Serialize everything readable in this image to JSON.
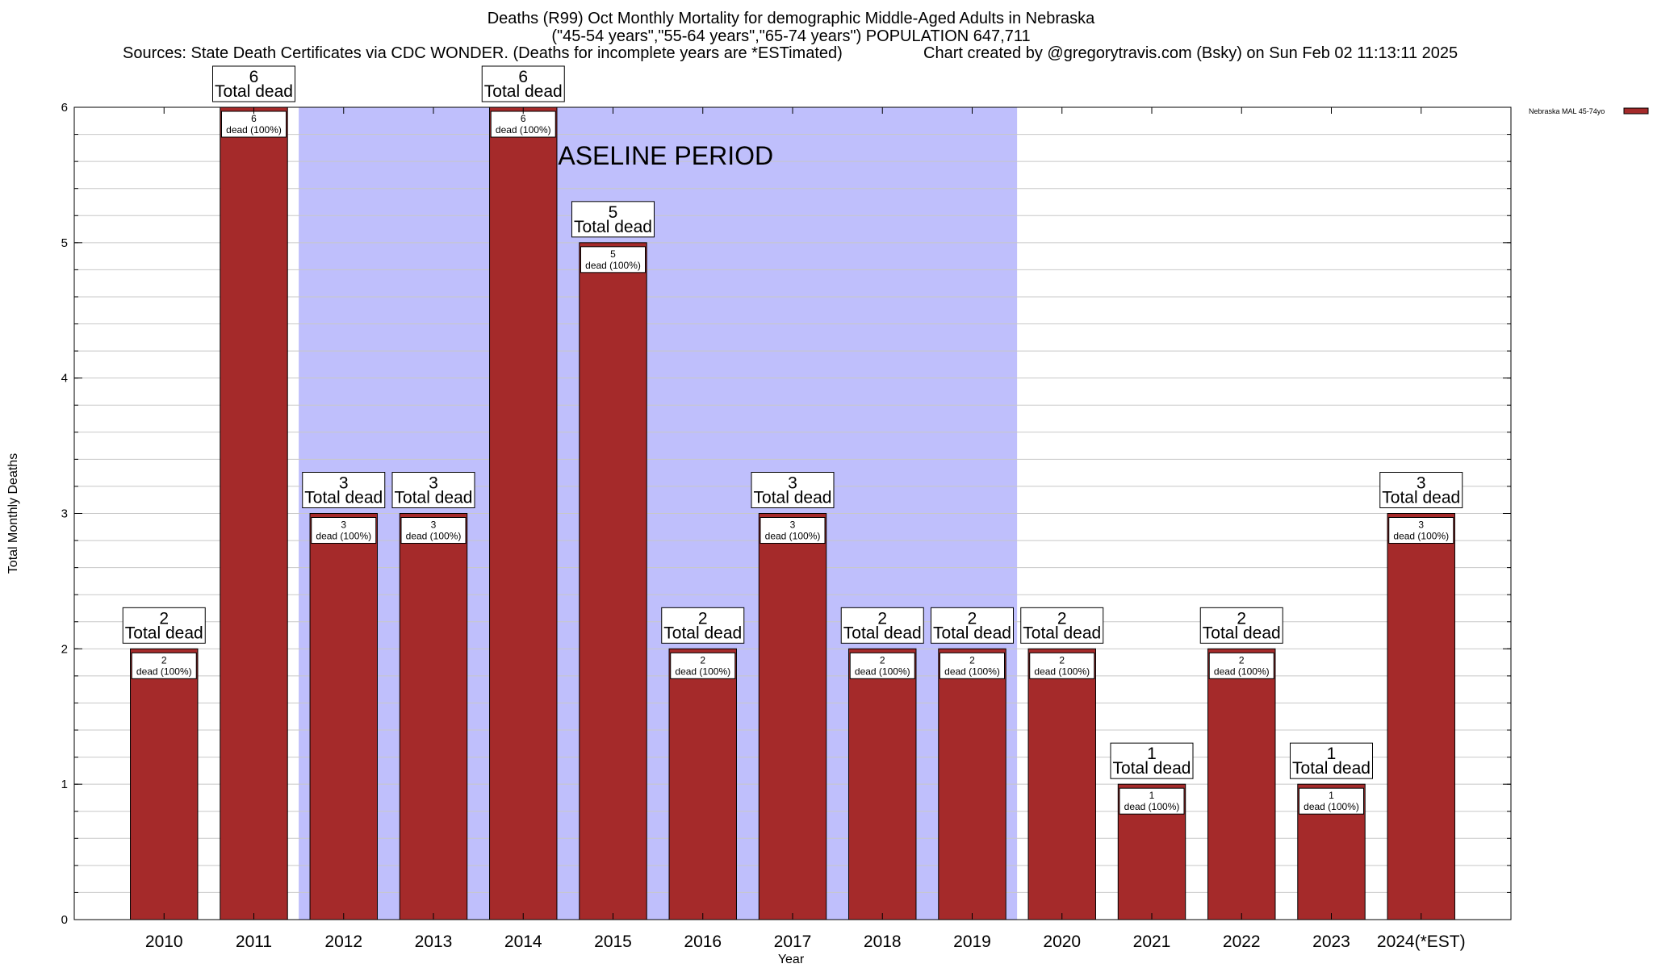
{
  "title": {
    "line1": "Deaths (R99) Oct Monthly Mortality for demographic Middle-Aged Adults in Nebraska",
    "line2": "(\"45-54 years\",\"55-64 years\",\"65-74 years\") POPULATION 647,711",
    "sources": "Sources: State Death Certificates via CDC WONDER. (Deaths for incomplete years are *ESTimated)",
    "credit": "Chart created by @gregorytravis.com (Bsky) on Sun Feb 02 11:13:11 2025"
  },
  "chart_data": {
    "type": "bar",
    "xlabel": "Year",
    "ylabel": "Total Monthly Deaths",
    "ylim": [
      0,
      6
    ],
    "yticks": [
      0,
      1,
      2,
      3,
      4,
      5,
      6
    ],
    "grid": true,
    "legend_placement": "top-right",
    "categories": [
      "2010",
      "2011",
      "2012",
      "2013",
      "2014",
      "2015",
      "2016",
      "2017",
      "2018",
      "2019",
      "2020",
      "2021",
      "2022",
      "2023",
      "2024(*EST)"
    ],
    "series": [
      {
        "name": "Nebraska MAL 45-74yo",
        "values": [
          2,
          6,
          3,
          3,
          6,
          5,
          2,
          3,
          2,
          2,
          2,
          1,
          2,
          1,
          3
        ]
      }
    ],
    "top_labels": [
      "2",
      "6",
      "3",
      "3",
      "6",
      "5",
      "2",
      "3",
      "2",
      "2",
      "2",
      "1",
      "2",
      "1",
      "3"
    ],
    "top_label_suffix": "Total dead",
    "inner_labels": [
      "2",
      "6",
      "3",
      "3",
      "6",
      "5",
      "2",
      "3",
      "2",
      "2",
      "2",
      "1",
      "2",
      "1",
      "3"
    ],
    "inner_label_suffix": "dead (100%)",
    "baseline_period": {
      "label": "BASELINE PERIOD",
      "from_category": "2012",
      "to_category": "2019"
    },
    "colors": {
      "bar": "#a52a2a",
      "baseline_shade": "#bfbffc",
      "grid": "#c8c8c8"
    }
  }
}
